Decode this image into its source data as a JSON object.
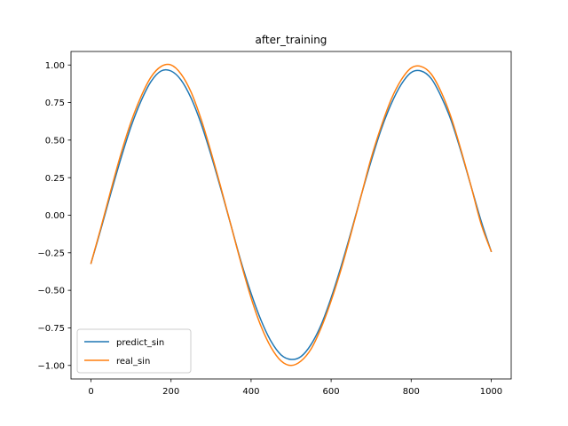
{
  "chart_data": {
    "type": "line",
    "title": "after_training",
    "xlabel": "",
    "ylabel": "",
    "xlim": [
      -50,
      1050
    ],
    "ylim": [
      -1.09,
      1.09
    ],
    "xticks": [
      0,
      200,
      400,
      600,
      800,
      1000
    ],
    "xtick_labels": [
      "0",
      "200",
      "400",
      "600",
      "800",
      "1000"
    ],
    "yticks": [
      -1.0,
      -0.75,
      -0.5,
      -0.25,
      0.0,
      0.25,
      0.5,
      0.75,
      1.0
    ],
    "ytick_labels": [
      "−1.00",
      "−0.75",
      "−0.50",
      "−0.25",
      "0.00",
      "0.25",
      "0.50",
      "0.75",
      "1.00"
    ],
    "grid": false,
    "legend_position": "lower-left",
    "x": [
      0,
      25,
      50,
      75,
      100,
      125,
      150,
      175,
      200,
      225,
      250,
      275,
      300,
      325,
      350,
      375,
      400,
      425,
      450,
      475,
      500,
      525,
      550,
      575,
      600,
      625,
      650,
      675,
      700,
      725,
      750,
      775,
      800,
      825,
      850,
      875,
      900,
      925,
      950,
      975,
      1000
    ],
    "series": [
      {
        "name": "predict_sin",
        "color": "#1f77b4",
        "values": [
          -0.32,
          -0.09,
          0.15,
          0.38,
          0.59,
          0.76,
          0.89,
          0.96,
          0.96,
          0.9,
          0.78,
          0.61,
          0.4,
          0.17,
          -0.07,
          -0.31,
          -0.52,
          -0.7,
          -0.84,
          -0.93,
          -0.96,
          -0.94,
          -0.86,
          -0.73,
          -0.55,
          -0.34,
          -0.11,
          0.13,
          0.36,
          0.57,
          0.74,
          0.87,
          0.95,
          0.96,
          0.91,
          0.79,
          0.63,
          0.42,
          0.19,
          -0.04,
          -0.24
        ]
      },
      {
        "name": "real_sin",
        "color": "#ff7f0e",
        "values": [
          -0.32,
          -0.08,
          0.17,
          0.41,
          0.62,
          0.79,
          0.92,
          0.99,
          1.0,
          0.94,
          0.82,
          0.64,
          0.42,
          0.18,
          -0.07,
          -0.32,
          -0.55,
          -0.74,
          -0.88,
          -0.97,
          -1.0,
          -0.97,
          -0.89,
          -0.75,
          -0.57,
          -0.36,
          -0.12,
          0.13,
          0.38,
          0.59,
          0.77,
          0.9,
          0.98,
          0.99,
          0.94,
          0.82,
          0.65,
          0.43,
          0.19,
          -0.06,
          -0.24
        ]
      }
    ]
  }
}
